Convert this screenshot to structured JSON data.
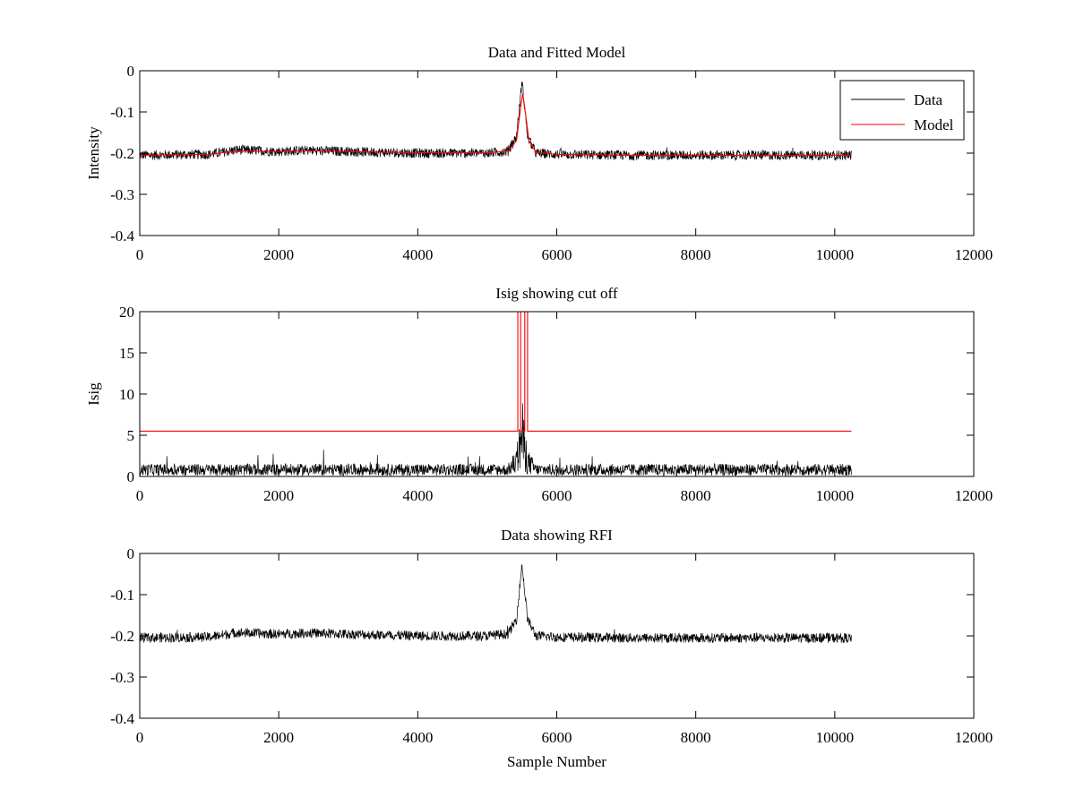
{
  "figure": {
    "background": "#ffffff"
  },
  "chart_data": [
    {
      "type": "line",
      "title": "Data and Fitted Model",
      "xlabel": "",
      "ylabel": "Intensity",
      "xlim": [
        0,
        12000
      ],
      "ylim": [
        -0.4,
        0
      ],
      "xticks": [
        0,
        2000,
        4000,
        6000,
        8000,
        10000,
        12000
      ],
      "yticks": [
        -0.4,
        -0.3,
        -0.2,
        -0.1,
        0
      ],
      "xtick_labels": [
        "0",
        "2000",
        "4000",
        "6000",
        "8000",
        "10000",
        "12000"
      ],
      "ytick_labels": [
        "-0.4",
        "-0.3",
        "-0.2",
        "-0.1",
        "0"
      ],
      "grid": false,
      "legend": {
        "placement": "top-right",
        "entries": [
          "Data",
          "Model"
        ]
      },
      "series": [
        {
          "name": "Data",
          "color": "#000000",
          "noisy": true,
          "x_range": [
            0,
            10240
          ],
          "baseline": [
            [
              0,
              -0.205
            ],
            [
              1000,
              -0.203
            ],
            [
              1400,
              -0.192
            ],
            [
              2000,
              -0.196
            ],
            [
              2400,
              -0.193
            ],
            [
              3000,
              -0.196
            ],
            [
              4000,
              -0.2
            ],
            [
              5000,
              -0.2
            ],
            [
              5300,
              -0.195
            ],
            [
              5420,
              -0.16
            ],
            [
              5480,
              -0.06
            ],
            [
              5500,
              -0.025
            ],
            [
              5520,
              -0.06
            ],
            [
              5580,
              -0.16
            ],
            [
              5700,
              -0.2
            ],
            [
              6000,
              -0.203
            ],
            [
              7000,
              -0.205
            ],
            [
              8000,
              -0.205
            ],
            [
              9000,
              -0.205
            ],
            [
              10240,
              -0.205
            ]
          ],
          "noise_amplitude": 0.012
        },
        {
          "name": "Model",
          "color": "#ff0000",
          "noisy": false,
          "x_range": [
            0,
            10240
          ],
          "points": [
            [
              0,
              -0.205
            ],
            [
              1000,
              -0.203
            ],
            [
              1400,
              -0.195
            ],
            [
              2000,
              -0.196
            ],
            [
              2400,
              -0.194
            ],
            [
              3000,
              -0.196
            ],
            [
              4000,
              -0.199
            ],
            [
              5000,
              -0.199
            ],
            [
              5300,
              -0.195
            ],
            [
              5420,
              -0.17
            ],
            [
              5480,
              -0.09
            ],
            [
              5510,
              -0.055
            ],
            [
              5540,
              -0.09
            ],
            [
              5600,
              -0.17
            ],
            [
              5700,
              -0.198
            ],
            [
              6000,
              -0.203
            ],
            [
              7000,
              -0.205
            ],
            [
              8000,
              -0.205
            ],
            [
              9000,
              -0.206
            ],
            [
              10240,
              -0.205
            ]
          ]
        }
      ]
    },
    {
      "type": "line",
      "title": "Isig showing cut off",
      "xlabel": "",
      "ylabel": "Isig",
      "xlim": [
        0,
        12000
      ],
      "ylim": [
        0,
        20
      ],
      "xticks": [
        0,
        2000,
        4000,
        6000,
        8000,
        10000,
        12000
      ],
      "yticks": [
        0,
        5,
        10,
        15,
        20
      ],
      "xtick_labels": [
        "0",
        "2000",
        "4000",
        "6000",
        "8000",
        "10000",
        "12000"
      ],
      "ytick_labels": [
        "0",
        "5",
        "10",
        "15",
        "20"
      ],
      "grid": false,
      "series": [
        {
          "color": "#000000",
          "noisy": true,
          "x_range": [
            0,
            10240
          ],
          "baseline": [
            [
              0,
              0.9
            ],
            [
              5300,
              0.9
            ],
            [
              5420,
              2.0
            ],
            [
              5480,
              4.5
            ],
            [
              5500,
              6.0
            ],
            [
              5520,
              4.5
            ],
            [
              5580,
              2.0
            ],
            [
              5700,
              0.9
            ],
            [
              10240,
              0.9
            ]
          ],
          "noise_amplitude": 0.9
        },
        {
          "color": "#ff0000",
          "noisy": false,
          "x_range": [
            0,
            10240
          ],
          "points": [
            [
              0,
              5.5
            ],
            [
              5440,
              5.5
            ],
            [
              5440,
              20
            ],
            [
              5480,
              20
            ],
            [
              5480,
              5.5
            ],
            [
              5540,
              5.5
            ],
            [
              5540,
              20
            ],
            [
              5580,
              20
            ],
            [
              5580,
              5.5
            ],
            [
              10240,
              5.5
            ]
          ]
        }
      ]
    },
    {
      "type": "line",
      "title": "Data showing RFI",
      "xlabel": "Sample Number",
      "ylabel": "",
      "xlim": [
        0,
        12000
      ],
      "ylim": [
        -0.4,
        0
      ],
      "xticks": [
        0,
        2000,
        4000,
        6000,
        8000,
        10000,
        12000
      ],
      "yticks": [
        -0.4,
        -0.3,
        -0.2,
        -0.1,
        0
      ],
      "xtick_labels": [
        "0",
        "2000",
        "4000",
        "6000",
        "8000",
        "10000",
        "12000"
      ],
      "ytick_labels": [
        "-0.4",
        "-0.3",
        "-0.2",
        "-0.1",
        "0"
      ],
      "grid": false,
      "series": [
        {
          "color": "#000000",
          "noisy": true,
          "x_range": [
            0,
            10240
          ],
          "baseline": [
            [
              0,
              -0.205
            ],
            [
              1000,
              -0.203
            ],
            [
              1400,
              -0.192
            ],
            [
              2000,
              -0.196
            ],
            [
              2400,
              -0.193
            ],
            [
              3000,
              -0.196
            ],
            [
              4000,
              -0.2
            ],
            [
              5000,
              -0.2
            ],
            [
              5300,
              -0.195
            ],
            [
              5420,
              -0.16
            ],
            [
              5480,
              -0.06
            ],
            [
              5500,
              -0.025
            ],
            [
              5520,
              -0.06
            ],
            [
              5580,
              -0.16
            ],
            [
              5700,
              -0.2
            ],
            [
              6000,
              -0.203
            ],
            [
              7000,
              -0.205
            ],
            [
              8000,
              -0.205
            ],
            [
              9000,
              -0.205
            ],
            [
              10240,
              -0.205
            ]
          ],
          "noise_amplitude": 0.012
        }
      ]
    }
  ]
}
